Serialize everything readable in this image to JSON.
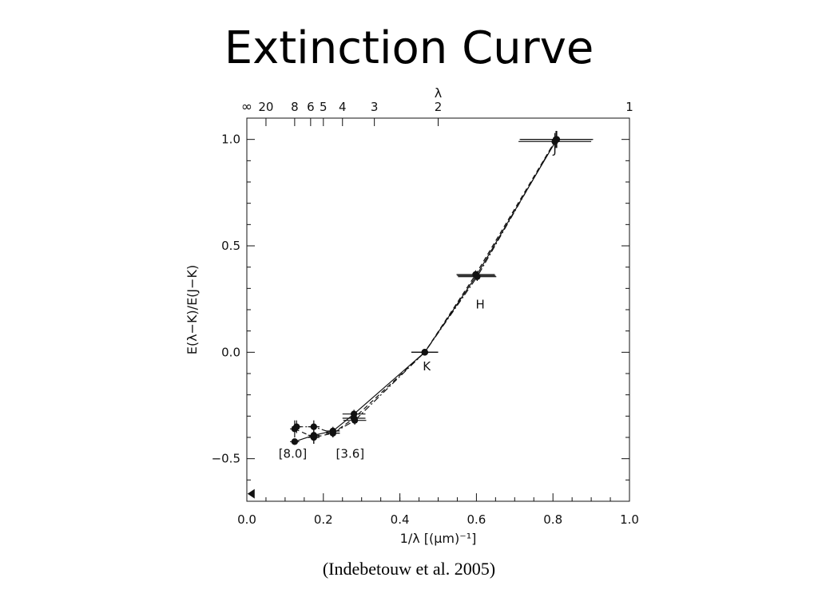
{
  "slide": {
    "title": "Extinction Curve",
    "citation": "(Indebetouw et al. 2005)"
  },
  "chart_data": {
    "type": "line",
    "title": "",
    "xlabel": "1/λ [(μm)⁻¹]",
    "ylabel": "E(λ−K)/E(J−K)",
    "top_axis_label": "λ",
    "xlim": [
      0.0,
      1.0
    ],
    "ylim": [
      -0.7,
      1.1
    ],
    "x_ticks": [
      0.0,
      0.2,
      0.4,
      0.6,
      0.8,
      1.0
    ],
    "x_tick_labels": [
      "0.0",
      "0.2",
      "0.4",
      "0.6",
      "0.8",
      "1.0"
    ],
    "y_ticks": [
      -0.5,
      0.0,
      0.5,
      1.0
    ],
    "y_tick_labels": [
      "−0.5",
      "0.0",
      "0.5",
      "1.0"
    ],
    "top_ticks": [
      {
        "label": "∞",
        "inv": 0.0
      },
      {
        "label": "20",
        "inv": 0.05
      },
      {
        "label": "8",
        "inv": 0.125
      },
      {
        "label": "6",
        "inv": 0.1667
      },
      {
        "label": "5",
        "inv": 0.2
      },
      {
        "label": "4",
        "inv": 0.25
      },
      {
        "label": "3",
        "inv": 0.3333
      },
      {
        "label": "2",
        "inv": 0.5
      },
      {
        "label": "1",
        "inv": 1.0
      }
    ],
    "grid": false,
    "series": [
      {
        "style": "solid",
        "points": [
          [
            0.125,
            -0.42
          ],
          [
            0.175,
            -0.39
          ],
          [
            0.225,
            -0.37
          ],
          [
            0.28,
            -0.29
          ],
          [
            0.465,
            0.0
          ],
          [
            0.6,
            0.36
          ],
          [
            0.81,
            1.0
          ]
        ],
        "xerr": [
          0.012,
          0.015,
          0.018,
          0.03,
          0.035,
          0.05,
          0.095
        ],
        "yerr": [
          0.0,
          0.04,
          0.02,
          0.02,
          0.0,
          0.02,
          0.04
        ]
      },
      {
        "style": "dashed",
        "points": [
          [
            0.125,
            -0.36
          ],
          [
            0.175,
            -0.4
          ],
          [
            0.225,
            -0.38
          ],
          [
            0.28,
            -0.31
          ],
          [
            0.465,
            0.0
          ],
          [
            0.598,
            0.365
          ],
          [
            0.808,
            1.0
          ]
        ],
        "xerr": [
          0.012,
          0.015,
          0.018,
          0.03,
          0.035,
          0.05,
          0.095
        ],
        "yerr": [
          0.04,
          0.03,
          0.02,
          0.02,
          0.0,
          0.02,
          0.04
        ]
      },
      {
        "style": "dashdot",
        "points": [
          [
            0.13,
            -0.35
          ],
          [
            0.175,
            -0.35
          ],
          [
            0.225,
            -0.38
          ],
          [
            0.282,
            -0.32
          ],
          [
            0.465,
            0.0
          ],
          [
            0.602,
            0.355
          ],
          [
            0.805,
            0.99
          ]
        ],
        "xerr": [
          0.012,
          0.015,
          0.018,
          0.03,
          0.035,
          0.05,
          0.095
        ],
        "yerr": [
          0.03,
          0.03,
          0.02,
          0.02,
          0.0,
          0.02,
          0.04
        ]
      }
    ],
    "annotations": [
      {
        "text": "J",
        "x": 0.805,
        "y": 0.935
      },
      {
        "text": "H",
        "x": 0.61,
        "y": 0.205
      },
      {
        "text": "K",
        "x": 0.47,
        "y": -0.085
      },
      {
        "text": "[8.0]",
        "x": 0.12,
        "y": -0.495
      },
      {
        "text": "[3.6]",
        "x": 0.27,
        "y": -0.495
      }
    ],
    "markers": [
      {
        "shape": "triangle-left",
        "x": 0.01,
        "y": -0.665
      }
    ]
  }
}
